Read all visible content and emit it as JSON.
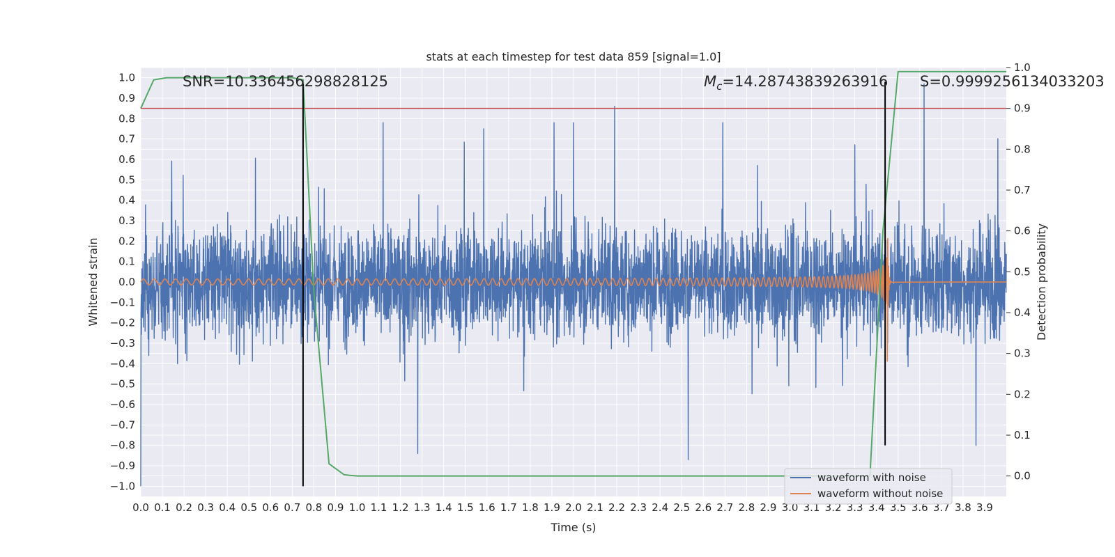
{
  "chart_data": {
    "type": "line",
    "title": "stats at each timestep for test data 859 [signal=1.0]",
    "xlabel": "Time (s)",
    "ylabel": "Whitened strain",
    "y2label": "Detection probability",
    "xlim": [
      0.0,
      4.0
    ],
    "ylim": [
      -1.05,
      1.05
    ],
    "y2lim": [
      -0.05,
      1.0
    ],
    "x_ticks": [
      "0.0",
      "0.1",
      "0.2",
      "0.3",
      "0.4",
      "0.5",
      "0.6",
      "0.7",
      "0.8",
      "0.9",
      "1.0",
      "1.1",
      "1.2",
      "1.3",
      "1.4",
      "1.5",
      "1.6",
      "1.7",
      "1.8",
      "1.9",
      "2.0",
      "2.1",
      "2.2",
      "2.3",
      "2.4",
      "2.5",
      "2.6",
      "2.7",
      "2.8",
      "2.9",
      "3.0",
      "3.1",
      "3.2",
      "3.3",
      "3.4",
      "3.5",
      "3.6",
      "3.7",
      "3.8",
      "3.9"
    ],
    "y_ticks": [
      "1.0",
      "0.9",
      "0.8",
      "0.7",
      "0.6",
      "0.5",
      "0.4",
      "0.3",
      "0.2",
      "0.1",
      "0.0",
      "−0.1",
      "−0.2",
      "−0.3",
      "−0.4",
      "−0.5",
      "−0.6",
      "−0.7",
      "−0.8",
      "−0.9",
      "−1.0"
    ],
    "y2_ticks": [
      "1.0",
      "0.9",
      "0.8",
      "0.7",
      "0.6",
      "0.5",
      "0.4",
      "0.3",
      "0.2",
      "0.1",
      "0.0"
    ],
    "grid": true,
    "legend_position": "lower-right",
    "annotations": {
      "snr": "SNR=10.336456298828125",
      "mc_symbol": "M",
      "mc_sub": "c",
      "mc_value": "=14.28743839263916",
      "s": "S=0.9999256134033203"
    },
    "series": [
      {
        "name": "waveform with noise",
        "color": "#4c72b0",
        "kind": "noise",
        "x_range": [
          0.0,
          4.0
        ],
        "amplitude": 0.22,
        "spikes": [
          {
            "x": 0.0,
            "y": -1.0
          },
          {
            "x": 0.75,
            "y": -0.69
          },
          {
            "x": 0.75,
            "y": 0.93
          },
          {
            "x": 1.12,
            "y": 0.78
          },
          {
            "x": 1.28,
            "y": -0.84
          },
          {
            "x": 1.91,
            "y": 0.78
          },
          {
            "x": 2.0,
            "y": 0.78
          },
          {
            "x": 2.19,
            "y": 0.86
          },
          {
            "x": 2.53,
            "y": -0.87
          },
          {
            "x": 2.69,
            "y": 0.78
          },
          {
            "x": 3.62,
            "y": 0.97
          },
          {
            "x": 3.86,
            "y": -0.8
          }
        ]
      },
      {
        "name": "waveform without noise",
        "color": "#dd8452",
        "kind": "chirp",
        "x_range": [
          0.0,
          3.47
        ],
        "amplitude_start": 0.012,
        "amplitude_end": 0.43,
        "merger_x": 3.45
      },
      {
        "name": "detection probability",
        "color": "#55a868",
        "axis": "y2",
        "x": [
          0.0,
          0.06,
          0.12,
          0.5,
          0.7,
          0.75,
          0.8,
          0.87,
          0.94,
          1.0,
          2.0,
          3.0,
          3.37,
          3.43,
          3.5,
          4.0
        ],
        "y": [
          0.9,
          0.97,
          0.975,
          0.975,
          0.975,
          0.97,
          0.45,
          0.03,
          0.003,
          0.0,
          0.0,
          0.0,
          0.0,
          0.6,
          0.99,
          0.99
        ]
      },
      {
        "name": "threshold",
        "color": "#c44e52",
        "axis": "y2",
        "y": 0.9
      }
    ],
    "vertical_markers": [
      {
        "x": 0.75,
        "y_range": [
          -1.0,
          0.97
        ],
        "color": "#000000"
      },
      {
        "x": 3.44,
        "y_range": [
          -0.8,
          0.98
        ],
        "color": "#000000"
      }
    ],
    "legend": [
      {
        "label": "waveform with noise",
        "color": "#4c72b0"
      },
      {
        "label": "waveform without noise",
        "color": "#dd8452"
      }
    ]
  }
}
